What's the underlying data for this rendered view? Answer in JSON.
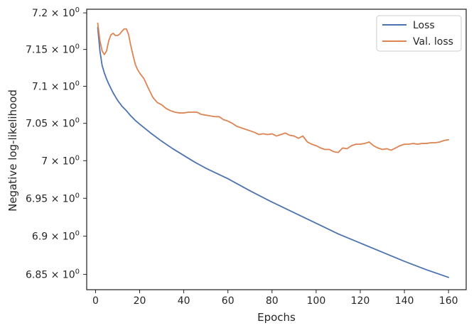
{
  "chart_data": {
    "type": "line",
    "title": "",
    "xlabel": "Epochs",
    "ylabel": "Negative log-likelihood",
    "xlim": [
      -4,
      168
    ],
    "ylim": [
      6.83,
      7.205
    ],
    "x_ticks": [
      0,
      20,
      40,
      60,
      80,
      100,
      120,
      140,
      160
    ],
    "x_tick_labels": [
      "0",
      "20",
      "40",
      "60",
      "80",
      "100",
      "120",
      "140",
      "160"
    ],
    "y_ticks": [
      6.85,
      6.9,
      6.95,
      7.0,
      7.05,
      7.1,
      7.15,
      7.2
    ],
    "y_tick_labels": [
      {
        "mantissa": "6.85 × 10",
        "exponent": "0"
      },
      {
        "mantissa": "6.9 × 10",
        "exponent": "0"
      },
      {
        "mantissa": "6.95 × 10",
        "exponent": "0"
      },
      {
        "mantissa": "7 × 10",
        "exponent": "0"
      },
      {
        "mantissa": "7.05 × 10",
        "exponent": "0"
      },
      {
        "mantissa": "7.1 × 10",
        "exponent": "0"
      },
      {
        "mantissa": "7.15 × 10",
        "exponent": "0"
      },
      {
        "mantissa": "7.2 × 10",
        "exponent": "0"
      }
    ],
    "y_scale": "log",
    "grid": false,
    "legend_position": "top-right",
    "series": [
      {
        "name": "Loss",
        "color": "#4c72b0",
        "x": [
          1,
          2,
          3,
          4,
          5,
          6,
          7,
          8,
          10,
          12,
          14,
          16,
          18,
          20,
          25,
          30,
          35,
          40,
          45,
          50,
          55,
          60,
          65,
          70,
          80,
          90,
          100,
          110,
          120,
          130,
          140,
          150,
          160
        ],
        "values": [
          7.18,
          7.148,
          7.128,
          7.118,
          7.11,
          7.103,
          7.097,
          7.091,
          7.081,
          7.073,
          7.067,
          7.06,
          7.054,
          7.049,
          7.037,
          7.026,
          7.016,
          7.007,
          6.998,
          6.99,
          6.983,
          6.976,
          6.968,
          6.96,
          6.945,
          6.931,
          6.917,
          6.903,
          6.891,
          6.879,
          6.867,
          6.856,
          6.846
        ]
      },
      {
        "name": "Val. loss",
        "color": "#dd8452",
        "x": [
          1,
          2,
          3,
          4,
          5,
          6,
          7,
          8,
          9,
          10,
          11,
          12,
          13,
          14,
          15,
          16,
          17,
          18,
          19,
          20,
          22,
          24,
          26,
          28,
          30,
          32,
          34,
          36,
          38,
          40,
          42,
          44,
          46,
          48,
          50,
          52,
          54,
          56,
          58,
          60,
          62,
          64,
          66,
          68,
          70,
          72,
          74,
          76,
          78,
          80,
          82,
          84,
          86,
          88,
          90,
          92,
          94,
          96,
          98,
          100,
          102,
          104,
          106,
          108,
          110,
          112,
          114,
          116,
          118,
          120,
          122,
          124,
          126,
          128,
          130,
          132,
          134,
          136,
          138,
          140,
          142,
          144,
          146,
          148,
          150,
          152,
          154,
          156,
          158,
          160
        ],
        "values": [
          7.186,
          7.162,
          7.148,
          7.143,
          7.148,
          7.162,
          7.17,
          7.172,
          7.169,
          7.169,
          7.171,
          7.175,
          7.178,
          7.178,
          7.17,
          7.155,
          7.142,
          7.13,
          7.123,
          7.118,
          7.11,
          7.097,
          7.085,
          7.078,
          7.075,
          7.07,
          7.067,
          7.065,
          7.064,
          7.064,
          7.065,
          7.065,
          7.065,
          7.062,
          7.061,
          7.06,
          7.059,
          7.059,
          7.055,
          7.053,
          7.05,
          7.046,
          7.044,
          7.042,
          7.04,
          7.038,
          7.035,
          7.036,
          7.035,
          7.036,
          7.033,
          7.035,
          7.037,
          7.034,
          7.033,
          7.03,
          7.033,
          7.025,
          7.022,
          7.02,
          7.017,
          7.015,
          7.015,
          7.012,
          7.011,
          7.017,
          7.016,
          7.02,
          7.022,
          7.022,
          7.023,
          7.025,
          7.02,
          7.017,
          7.015,
          7.016,
          7.014,
          7.017,
          7.02,
          7.022,
          7.022,
          7.023,
          7.022,
          7.023,
          7.023,
          7.024,
          7.024,
          7.025,
          7.027,
          7.028
        ]
      }
    ]
  }
}
